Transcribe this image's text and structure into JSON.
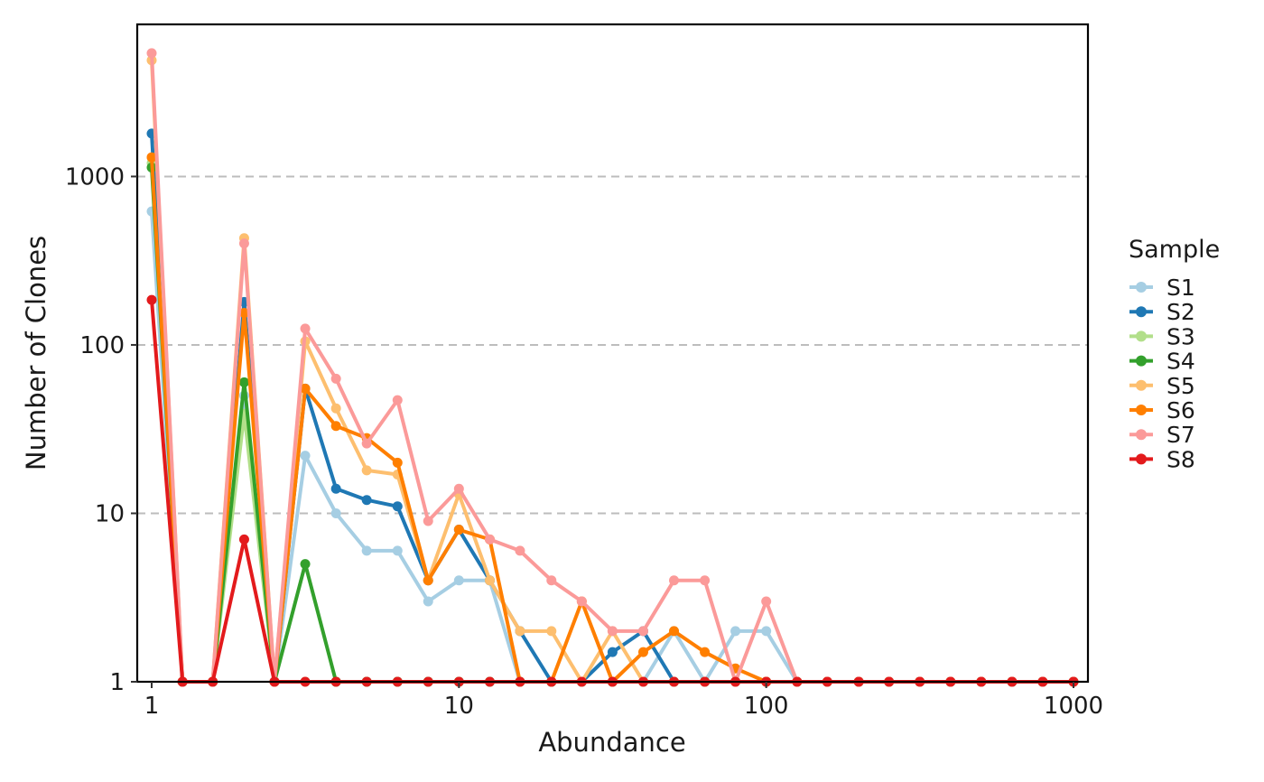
{
  "chart_data": {
    "type": "line",
    "title": "",
    "xlabel": "Abundance",
    "ylabel": "Number of Clones",
    "x_scale": "log10",
    "y_scale": "log10",
    "xlim": [
      0.9,
      1100
    ],
    "ylim": [
      1,
      8000
    ],
    "x_ticks": [
      1,
      10,
      100,
      1000
    ],
    "x_tick_labels": [
      "1",
      "10",
      "100",
      "1000"
    ],
    "y_ticks": [
      1,
      10,
      100,
      1000
    ],
    "y_tick_labels": [
      "1",
      "10",
      "100",
      "1000"
    ],
    "grid": "horizontal dashed at major y ticks",
    "legend": {
      "title": "Sample",
      "position": "right"
    },
    "x": [
      1,
      1.26,
      1.58,
      2,
      2.51,
      3.16,
      3.98,
      5.01,
      6.31,
      7.94,
      10,
      12.6,
      15.8,
      20,
      25.1,
      31.6,
      39.8,
      50.1,
      63.1,
      79.4,
      100,
      126,
      158,
      200,
      251,
      316,
      398,
      501,
      631,
      794,
      1000
    ],
    "series": [
      {
        "name": "S1",
        "color": "#a6cee3",
        "values": [
          620,
          1,
          1,
          50,
          1,
          22,
          10,
          6,
          6,
          3,
          4,
          4,
          1,
          1,
          1,
          1,
          1,
          2,
          1,
          2,
          2,
          1,
          1,
          1,
          1,
          1,
          1,
          1,
          1,
          1,
          1
        ]
      },
      {
        "name": "S2",
        "color": "#1f78b4",
        "values": [
          1800,
          1,
          1,
          180,
          1,
          55,
          14,
          12,
          11,
          4,
          8,
          4,
          2,
          1,
          1,
          1.5,
          2,
          1,
          1,
          1,
          1,
          1,
          1,
          1,
          1,
          1,
          1,
          1,
          1,
          1,
          1
        ]
      },
      {
        "name": "S3",
        "color": "#b2df8a",
        "values": [
          1200,
          1,
          1,
          39,
          1,
          1,
          1,
          1,
          1,
          1,
          1,
          1,
          1,
          1,
          1,
          1,
          1,
          1,
          1,
          1,
          1,
          1,
          1,
          1,
          1,
          1,
          1,
          1,
          1,
          1,
          1
        ]
      },
      {
        "name": "S4",
        "color": "#33a02c",
        "values": [
          1130,
          1,
          1,
          60,
          1,
          5,
          1,
          1,
          1,
          1,
          1,
          1,
          1,
          1,
          1,
          1,
          1,
          1,
          1,
          1,
          1,
          1,
          1,
          1,
          1,
          1,
          1,
          1,
          1,
          1,
          1
        ]
      },
      {
        "name": "S5",
        "color": "#fdbf6f",
        "values": [
          4900,
          1,
          1,
          430,
          1,
          105,
          42,
          18,
          17,
          4,
          13,
          4,
          2,
          2,
          1,
          2,
          1,
          1,
          1,
          1,
          1,
          1,
          1,
          1,
          1,
          1,
          1,
          1,
          1,
          1,
          1
        ]
      },
      {
        "name": "S6",
        "color": "#ff7f00",
        "values": [
          1300,
          1,
          1,
          155,
          1,
          55,
          33,
          28,
          20,
          4,
          8,
          7,
          1,
          1,
          3,
          1,
          1.5,
          2,
          1.5,
          1.2,
          1,
          1,
          1,
          1,
          1,
          1,
          1,
          1,
          1,
          1,
          1
        ]
      },
      {
        "name": "S7",
        "color": "#fb9a99",
        "values": [
          5400,
          1,
          1,
          400,
          1,
          125,
          63,
          26,
          47,
          9,
          14,
          7,
          6,
          4,
          3,
          2,
          2,
          4,
          4,
          1,
          3,
          1,
          1,
          1,
          1,
          1,
          1,
          1,
          1,
          1,
          1
        ]
      },
      {
        "name": "S8",
        "color": "#e31a1c",
        "values": [
          185,
          1,
          1,
          7,
          1,
          1,
          1,
          1,
          1,
          1,
          1,
          1,
          1,
          1,
          1,
          1,
          1,
          1,
          1,
          1,
          1,
          1,
          1,
          1,
          1,
          1,
          1,
          1,
          1,
          1,
          1
        ]
      }
    ]
  }
}
